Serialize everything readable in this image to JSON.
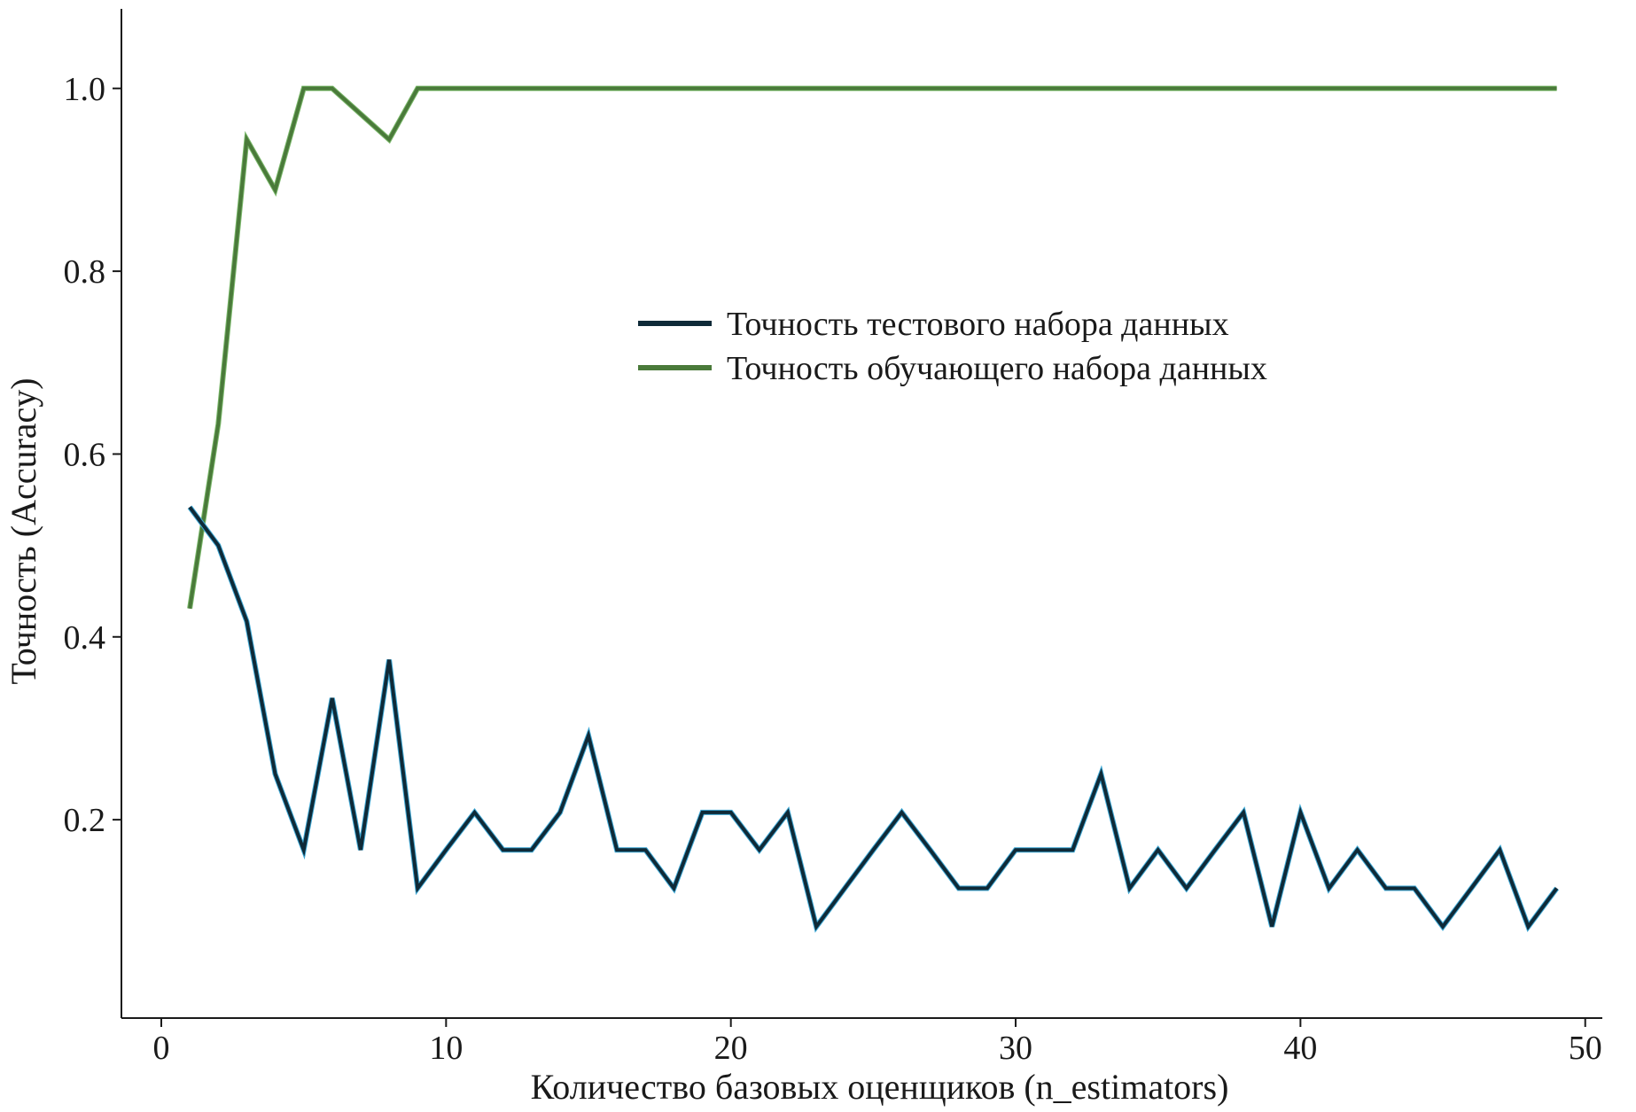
{
  "chart_data": {
    "type": "line",
    "title": "",
    "xlabel": "Количество базовых оценщиков (n_estimators)",
    "ylabel": "Точность (Accuracy)",
    "xlim": [
      -1.4,
      50.6
    ],
    "ylim": [
      -0.017,
      1.087
    ],
    "xticks": [
      0,
      10,
      20,
      30,
      40,
      50
    ],
    "xtick_labels": [
      "0",
      "10",
      "20",
      "30",
      "40",
      "50"
    ],
    "yticks": [
      0.2,
      0.4,
      0.6,
      0.8,
      1.0
    ],
    "ytick_labels": [
      "0.2",
      "0.4",
      "0.6",
      "0.8",
      "1.0"
    ],
    "grid": false,
    "legend_position": "center",
    "x": [
      1,
      2,
      3,
      4,
      5,
      6,
      7,
      8,
      9,
      10,
      11,
      12,
      13,
      14,
      15,
      16,
      17,
      18,
      19,
      20,
      21,
      22,
      23,
      24,
      25,
      26,
      27,
      28,
      29,
      30,
      31,
      32,
      33,
      34,
      35,
      36,
      37,
      38,
      39,
      40,
      41,
      42,
      43,
      44,
      45,
      46,
      47,
      48,
      49
    ],
    "series": [
      {
        "name": "Точность тестового набора данных",
        "color": "#0f2a38",
        "values": [
          0.542,
          0.5,
          0.417,
          0.25,
          0.167,
          0.333,
          0.167,
          0.375,
          0.125,
          0.167,
          0.208,
          0.167,
          0.167,
          0.208,
          0.292,
          0.167,
          0.167,
          0.125,
          0.208,
          0.208,
          0.167,
          0.208,
          0.083,
          0.125,
          0.167,
          0.208,
          0.167,
          0.125,
          0.125,
          0.167,
          0.167,
          0.167,
          0.25,
          0.125,
          0.167,
          0.125,
          0.167,
          0.208,
          0.083,
          0.208,
          0.125,
          0.167,
          0.125,
          0.125,
          0.083,
          0.125,
          0.167,
          0.083,
          0.125
        ]
      },
      {
        "name": "Точность обучающего набора данных",
        "color": "#4a7a3a",
        "values": [
          0.431,
          0.633,
          0.944,
          0.889,
          1.0,
          1.0,
          0.972,
          0.944,
          1.0,
          1.0,
          1.0,
          1.0,
          1.0,
          1.0,
          1.0,
          1.0,
          1.0,
          1.0,
          1.0,
          1.0,
          1.0,
          1.0,
          1.0,
          1.0,
          1.0,
          1.0,
          1.0,
          1.0,
          1.0,
          1.0,
          1.0,
          1.0,
          1.0,
          1.0,
          1.0,
          1.0,
          1.0,
          1.0,
          1.0,
          1.0,
          1.0,
          1.0,
          1.0,
          1.0,
          1.0,
          1.0,
          1.0,
          1.0,
          1.0
        ]
      }
    ]
  }
}
